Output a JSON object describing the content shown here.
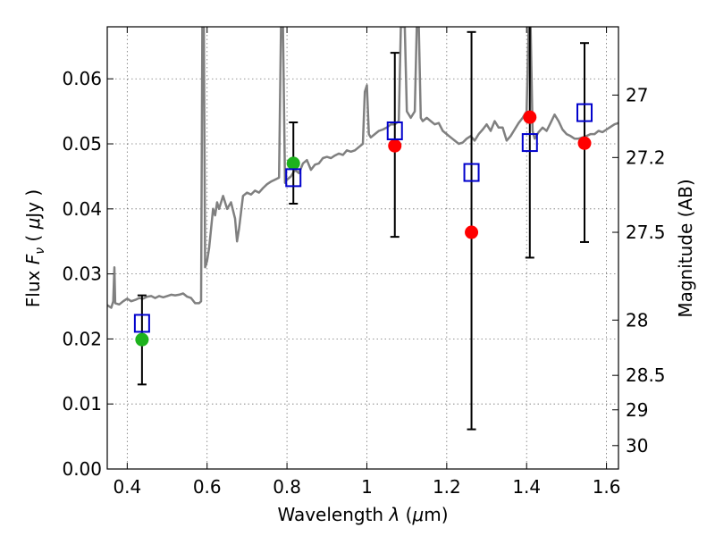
{
  "chart_data": {
    "type": "scatter",
    "xlabel": "Wavelength  λ (μm)",
    "ylabel": "Flux  F_ν  ( μJy )",
    "ylabel_parts": {
      "prefix": "Flux  ",
      "var": "F",
      "sub": "ν",
      "mid": "  ( ",
      "unit_mu": "μ",
      "unit_rest": "Jy )"
    },
    "xlabel_parts": {
      "prefix": "Wavelength  ",
      "var": "λ",
      "mid": " (",
      "mu": "μ",
      "unit": "m)"
    },
    "right_ylabel": "Magnitude (AB)",
    "xlim": [
      0.35,
      1.63
    ],
    "ylim": [
      0.0,
      0.068
    ],
    "grid": true,
    "x_ticks": [
      0.4,
      0.6,
      0.8,
      1.0,
      1.2,
      1.4,
      1.6
    ],
    "x_tick_labels": [
      "0.4",
      "0.6",
      "0.8",
      "1",
      "1.2",
      "1.4",
      "1.6"
    ],
    "y_ticks": [
      0.0,
      0.01,
      0.02,
      0.03,
      0.04,
      0.05,
      0.06
    ],
    "y_tick_labels": [
      "0.00",
      "0.01",
      "0.02",
      "0.03",
      "0.04",
      "0.05",
      "0.06"
    ],
    "right_ticks": [
      {
        "label": "27",
        "flux": 0.0575
      },
      {
        "label": "27.2",
        "flux": 0.0479
      },
      {
        "label": "27.5",
        "flux": 0.0364
      },
      {
        "label": "28",
        "flux": 0.0229
      },
      {
        "label": "28.5",
        "flux": 0.0144
      },
      {
        "label": "29",
        "flux": 0.0091
      },
      {
        "label": "30",
        "flux": 0.0036
      }
    ],
    "colors": {
      "spectrum": "#808080",
      "green_points": "#1db21d",
      "red_points": "#ff0000",
      "model_squares": "#0000cc",
      "errorbars": "#000000"
    },
    "series": [
      {
        "kind": "spectrum",
        "points": [
          [
            0.35,
            0.0252
          ],
          [
            0.36,
            0.0248
          ],
          [
            0.365,
            0.0258
          ],
          [
            0.368,
            0.031
          ],
          [
            0.37,
            0.0255
          ],
          [
            0.38,
            0.0253
          ],
          [
            0.39,
            0.0258
          ],
          [
            0.4,
            0.0262
          ],
          [
            0.41,
            0.0258
          ],
          [
            0.42,
            0.026
          ],
          [
            0.43,
            0.0263
          ],
          [
            0.44,
            0.0262
          ],
          [
            0.45,
            0.0265
          ],
          [
            0.46,
            0.0266
          ],
          [
            0.47,
            0.0263
          ],
          [
            0.48,
            0.0266
          ],
          [
            0.49,
            0.0264
          ],
          [
            0.5,
            0.0266
          ],
          [
            0.51,
            0.0268
          ],
          [
            0.52,
            0.0267
          ],
          [
            0.53,
            0.0268
          ],
          [
            0.54,
            0.027
          ],
          [
            0.55,
            0.0265
          ],
          [
            0.56,
            0.0263
          ],
          [
            0.57,
            0.0255
          ],
          [
            0.58,
            0.0255
          ],
          [
            0.585,
            0.0258
          ],
          [
            0.588,
            0.068
          ],
          [
            0.592,
            0.068
          ],
          [
            0.595,
            0.031
          ],
          [
            0.6,
            0.032
          ],
          [
            0.605,
            0.034
          ],
          [
            0.61,
            0.037
          ],
          [
            0.615,
            0.04
          ],
          [
            0.62,
            0.039
          ],
          [
            0.625,
            0.041
          ],
          [
            0.63,
            0.04
          ],
          [
            0.64,
            0.042
          ],
          [
            0.65,
            0.04
          ],
          [
            0.66,
            0.041
          ],
          [
            0.67,
            0.0385
          ],
          [
            0.675,
            0.035
          ],
          [
            0.68,
            0.037
          ],
          [
            0.69,
            0.042
          ],
          [
            0.7,
            0.0425
          ],
          [
            0.71,
            0.0422
          ],
          [
            0.72,
            0.0428
          ],
          [
            0.73,
            0.0425
          ],
          [
            0.74,
            0.0432
          ],
          [
            0.75,
            0.0438
          ],
          [
            0.76,
            0.0442
          ],
          [
            0.77,
            0.0445
          ],
          [
            0.78,
            0.0448
          ],
          [
            0.785,
            0.068
          ],
          [
            0.79,
            0.068
          ],
          [
            0.795,
            0.044
          ],
          [
            0.8,
            0.0445
          ],
          [
            0.81,
            0.045
          ],
          [
            0.82,
            0.046
          ],
          [
            0.83,
            0.0455
          ],
          [
            0.84,
            0.047
          ],
          [
            0.85,
            0.0475
          ],
          [
            0.86,
            0.046
          ],
          [
            0.87,
            0.0468
          ],
          [
            0.88,
            0.047
          ],
          [
            0.89,
            0.0478
          ],
          [
            0.9,
            0.048
          ],
          [
            0.91,
            0.0478
          ],
          [
            0.92,
            0.0482
          ],
          [
            0.93,
            0.0485
          ],
          [
            0.94,
            0.0483
          ],
          [
            0.95,
            0.049
          ],
          [
            0.96,
            0.0488
          ],
          [
            0.97,
            0.049
          ],
          [
            0.98,
            0.0495
          ],
          [
            0.99,
            0.05
          ],
          [
            0.995,
            0.058
          ],
          [
            1.0,
            0.059
          ],
          [
            1.005,
            0.0515
          ],
          [
            1.01,
            0.051
          ],
          [
            1.02,
            0.0515
          ],
          [
            1.03,
            0.052
          ],
          [
            1.04,
            0.0522
          ],
          [
            1.05,
            0.0525
          ],
          [
            1.06,
            0.053
          ],
          [
            1.07,
            0.053
          ],
          [
            1.08,
            0.0535
          ],
          [
            1.085,
            0.068
          ],
          [
            1.095,
            0.068
          ],
          [
            1.1,
            0.055
          ],
          [
            1.11,
            0.054
          ],
          [
            1.12,
            0.055
          ],
          [
            1.125,
            0.068
          ],
          [
            1.13,
            0.068
          ],
          [
            1.135,
            0.054
          ],
          [
            1.14,
            0.0535
          ],
          [
            1.15,
            0.054
          ],
          [
            1.16,
            0.0535
          ],
          [
            1.17,
            0.053
          ],
          [
            1.18,
            0.0532
          ],
          [
            1.19,
            0.052
          ],
          [
            1.2,
            0.0515
          ],
          [
            1.21,
            0.051
          ],
          [
            1.22,
            0.0505
          ],
          [
            1.23,
            0.05
          ],
          [
            1.24,
            0.0502
          ],
          [
            1.25,
            0.0508
          ],
          [
            1.26,
            0.0512
          ],
          [
            1.27,
            0.0505
          ],
          [
            1.28,
            0.0515
          ],
          [
            1.29,
            0.0522
          ],
          [
            1.3,
            0.053
          ],
          [
            1.31,
            0.052
          ],
          [
            1.32,
            0.0535
          ],
          [
            1.33,
            0.0525
          ],
          [
            1.34,
            0.0525
          ],
          [
            1.35,
            0.0505
          ],
          [
            1.36,
            0.0512
          ],
          [
            1.37,
            0.0522
          ],
          [
            1.38,
            0.0532
          ],
          [
            1.39,
            0.054
          ],
          [
            1.4,
            0.055
          ],
          [
            1.405,
            0.068
          ],
          [
            1.41,
            0.068
          ],
          [
            1.415,
            0.052
          ],
          [
            1.42,
            0.0508
          ],
          [
            1.43,
            0.0518
          ],
          [
            1.44,
            0.0525
          ],
          [
            1.45,
            0.052
          ],
          [
            1.46,
            0.0532
          ],
          [
            1.47,
            0.0545
          ],
          [
            1.48,
            0.0535
          ],
          [
            1.49,
            0.0522
          ],
          [
            1.5,
            0.0515
          ],
          [
            1.51,
            0.0512
          ],
          [
            1.52,
            0.0508
          ],
          [
            1.53,
            0.0508
          ],
          [
            1.54,
            0.051
          ],
          [
            1.55,
            0.0512
          ],
          [
            1.56,
            0.0515
          ],
          [
            1.57,
            0.0515
          ],
          [
            1.58,
            0.052
          ],
          [
            1.59,
            0.0518
          ],
          [
            1.6,
            0.0522
          ],
          [
            1.61,
            0.0526
          ],
          [
            1.62,
            0.053
          ],
          [
            1.63,
            0.0532
          ]
        ]
      },
      {
        "kind": "errorbars",
        "bars": [
          {
            "x": 0.437,
            "low": 0.013,
            "high": 0.0267
          },
          {
            "x": 0.816,
            "low": 0.0408,
            "high": 0.0533
          },
          {
            "x": 1.07,
            "low": 0.0357,
            "high": 0.064
          },
          {
            "x": 1.262,
            "low": 0.0061,
            "high": 0.0672
          },
          {
            "x": 1.408,
            "low": 0.0325,
            "high": 0.068
          },
          {
            "x": 1.545,
            "low": 0.0349,
            "high": 0.0655
          }
        ]
      },
      {
        "kind": "green_points",
        "points": [
          [
            0.437,
            0.0199
          ],
          [
            0.816,
            0.047
          ]
        ]
      },
      {
        "kind": "red_points",
        "points": [
          [
            1.07,
            0.0497
          ],
          [
            1.262,
            0.0364
          ],
          [
            1.408,
            0.0541
          ],
          [
            1.545,
            0.0501
          ]
        ]
      },
      {
        "kind": "model_squares",
        "points": [
          [
            0.437,
            0.0224
          ],
          [
            0.816,
            0.0448
          ],
          [
            1.07,
            0.052
          ],
          [
            1.262,
            0.0456
          ],
          [
            1.408,
            0.0502
          ],
          [
            1.545,
            0.0548
          ]
        ]
      }
    ]
  }
}
